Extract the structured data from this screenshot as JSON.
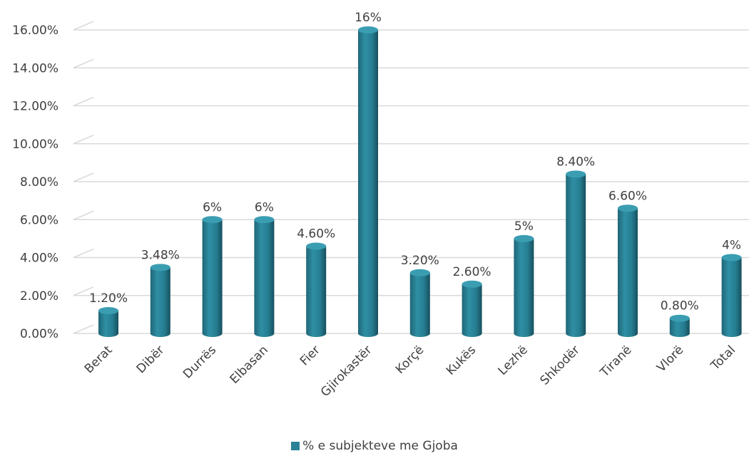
{
  "chart_data": {
    "type": "bar",
    "categories": [
      "Berat",
      "Dibër",
      "Durrës",
      "Elbasan",
      "Fier",
      "Gjirokastër",
      "Korçë",
      "Kukës",
      "Lezhë",
      "Shkodër",
      "Tiranë",
      "Vlorë",
      "Total"
    ],
    "series": [
      {
        "name": "% e subjekteve me Gjoba",
        "values": [
          1.2,
          3.48,
          6,
          6,
          4.6,
          16,
          3.2,
          2.6,
          5,
          8.4,
          6.6,
          0.8,
          4
        ],
        "data_labels": [
          "1.20%",
          "3.48%",
          "6%",
          "6%",
          "4.60%",
          "16%",
          "3.20%",
          "2.60%",
          "5%",
          "8.40%",
          "6.60%",
          "0.80%",
          "4%"
        ]
      }
    ],
    "y_ticks": [
      0,
      2,
      4,
      6,
      8,
      10,
      12,
      14,
      16
    ],
    "y_tick_labels": [
      "0.00%",
      "2.00%",
      "4.00%",
      "6.00%",
      "8.00%",
      "10.00%",
      "12.00%",
      "14.00%",
      "16.00%"
    ],
    "ylim": [
      0,
      16
    ],
    "grid": true,
    "legend_position": "bottom",
    "bar_color": "#2A8296"
  }
}
